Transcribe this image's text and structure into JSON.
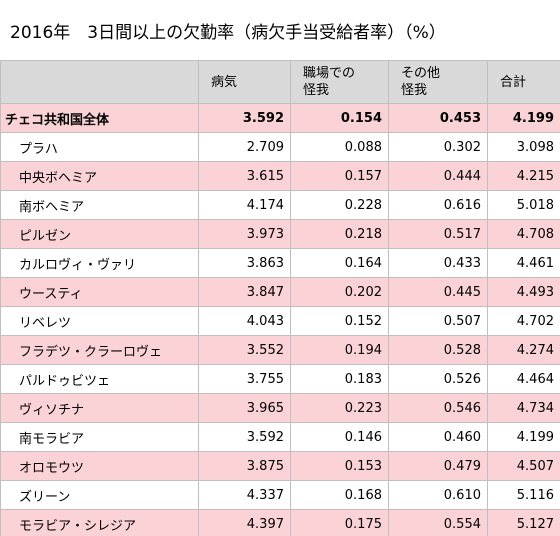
{
  "title": "2016年　3日間以上の欠勤率（病欠手当受給者率）（%）",
  "table": {
    "columns": [
      "病気",
      "職場での\n怪我",
      "その他\n怪我",
      "合計"
    ],
    "rows": [
      [
        "チェコ共和国全体",
        "3.592",
        "0.154",
        "0.453",
        "4.199"
      ],
      [
        "プラハ",
        "2.709",
        "0.088",
        "0.302",
        "3.098"
      ],
      [
        "中央ボヘミア",
        "3.615",
        "0.157",
        "0.444",
        "4.215"
      ],
      [
        "南ボヘミア",
        "4.174",
        "0.228",
        "0.616",
        "5.018"
      ],
      [
        "ピルゼン",
        "3.973",
        "0.218",
        "0.517",
        "4.708"
      ],
      [
        "カルロヴィ・ヴァリ",
        "3.863",
        "0.164",
        "0.433",
        "4.461"
      ],
      [
        "ウースティ",
        "3.847",
        "0.202",
        "0.445",
        "4.493"
      ],
      [
        "リベレツ",
        "4.043",
        "0.152",
        "0.507",
        "4.702"
      ],
      [
        "フラデツ・クラーロヴェ",
        "3.552",
        "0.194",
        "0.528",
        "4.274"
      ],
      [
        "パルドゥビツェ",
        "3.755",
        "0.183",
        "0.526",
        "4.464"
      ],
      [
        "ヴィソチナ",
        "3.965",
        "0.223",
        "0.546",
        "4.734"
      ],
      [
        "南モラビア",
        "3.592",
        "0.146",
        "0.460",
        "4.199"
      ],
      [
        "オロモウツ",
        "3.875",
        "0.153",
        "0.479",
        "4.507"
      ],
      [
        "ズリーン",
        "4.337",
        "0.168",
        "0.610",
        "5.116"
      ],
      [
        "モラビア・シレジア",
        "4.397",
        "0.175",
        "0.554",
        "5.127"
      ]
    ]
  }
}
